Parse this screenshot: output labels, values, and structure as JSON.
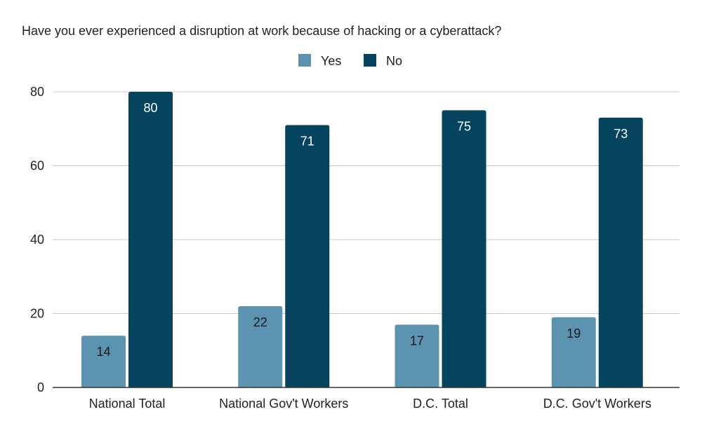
{
  "chart_data": {
    "type": "bar",
    "title": "Have you ever experienced a disruption at work because of hacking or a cyberattack?",
    "categories": [
      "National Total",
      "National Gov't Workers",
      "D.C. Total",
      "D.C. Gov't Workers"
    ],
    "series": [
      {
        "name": "Yes",
        "values": [
          14,
          22,
          17,
          19
        ],
        "color": "#5b93b0"
      },
      {
        "name": "No",
        "values": [
          80,
          71,
          75,
          73
        ],
        "color": "#05445e"
      }
    ],
    "xlabel": "",
    "ylabel": "",
    "ylim": [
      0,
      80
    ],
    "yticks": [
      "0",
      "20",
      "40",
      "60",
      "80"
    ],
    "grid": true,
    "legend_position": "top",
    "data_labels": true
  }
}
